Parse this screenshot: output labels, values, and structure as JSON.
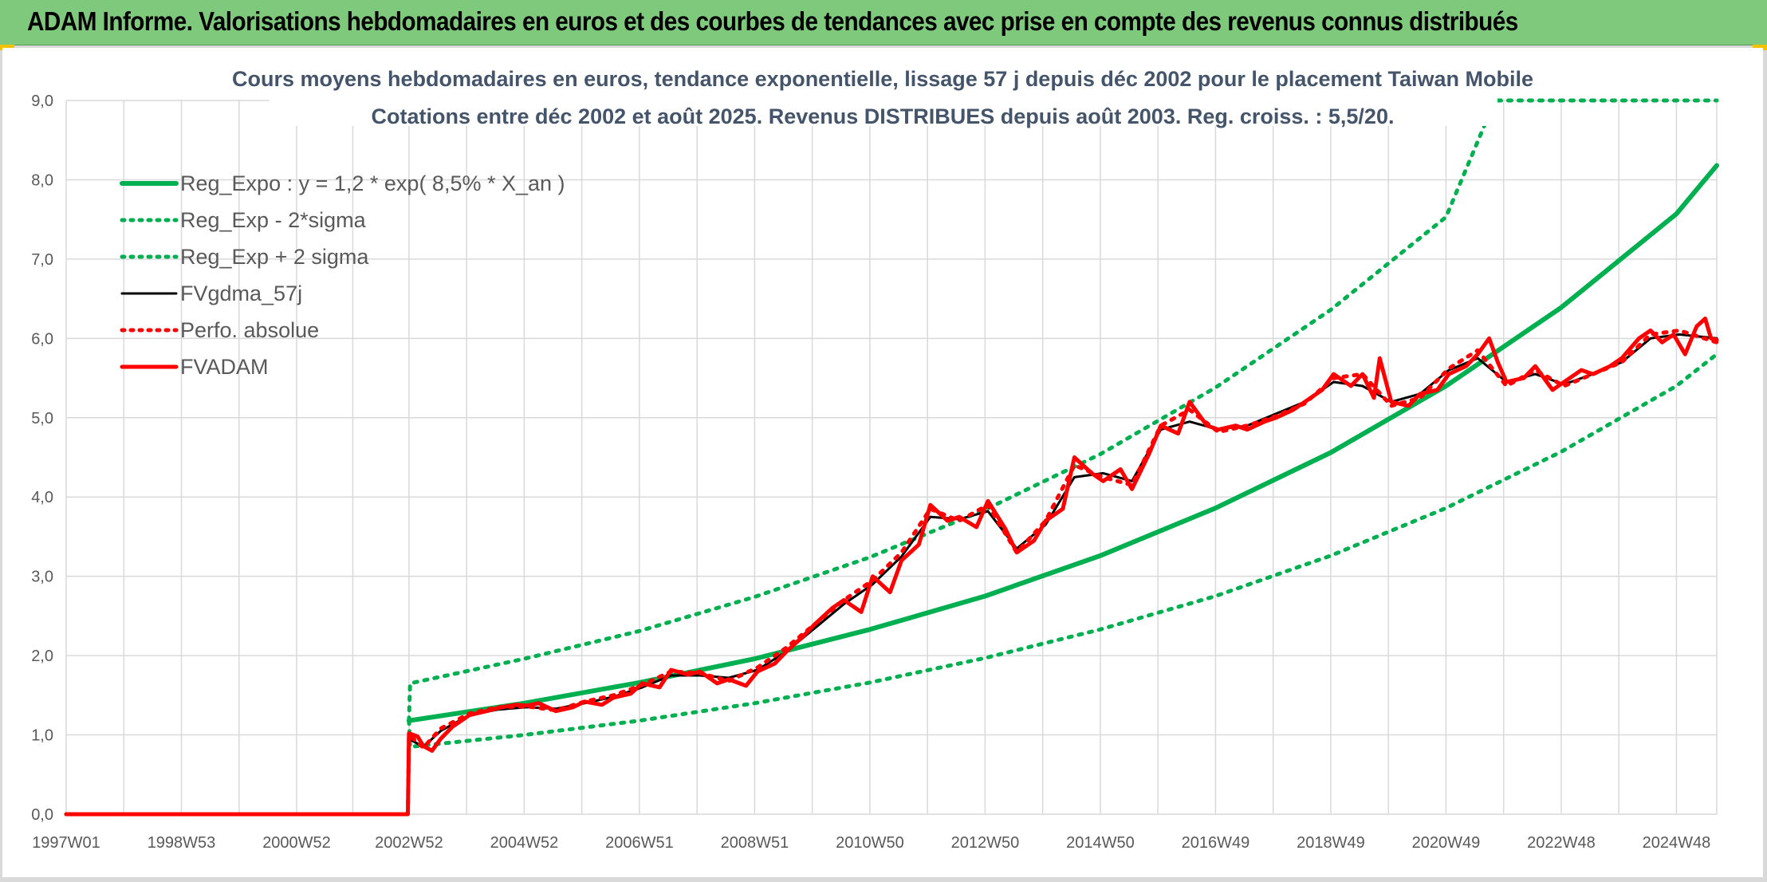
{
  "header": {
    "title": "ADAM Informe. Valorisations hebdomadaires en euros et des courbes de tendances avec prise en compte des revenus connus distribués"
  },
  "colors": {
    "header_bg": "#7ec97c",
    "green": "#00b050",
    "red": "#ff0000",
    "black": "#000000",
    "grid": "#d9d9d9",
    "title": "#44546a"
  },
  "chart_data": {
    "type": "line",
    "title": "Cours moyens hebdomadaires en euros, tendance exponentielle, lissage 57 j depuis déc 2002 pour le placement Taiwan Mobile",
    "subtitle": "Cotations entre déc 2002 et août 2025. Revenus DISTRIBUES depuis août 2003. Reg. croiss. : 5,5/20.",
    "xlabel": "",
    "ylabel": "",
    "ylim": [
      0,
      9
    ],
    "xlim": [
      1997.0,
      2025.65
    ],
    "y_ticks": [
      "0,0",
      "1,0",
      "2,0",
      "3,0",
      "4,0",
      "5,0",
      "6,0",
      "7,0",
      "8,0",
      "9,0"
    ],
    "x_ticks": [
      {
        "label": "1997W01",
        "x": 1997.0
      },
      {
        "label": "1998W53",
        "x": 1999.0
      },
      {
        "label": "2000W52",
        "x": 2001.0
      },
      {
        "label": "2002W52",
        "x": 2002.95
      },
      {
        "label": "2004W52",
        "x": 2004.95
      },
      {
        "label": "2006W51",
        "x": 2006.95
      },
      {
        "label": "2008W51",
        "x": 2008.95
      },
      {
        "label": "2010W50",
        "x": 2010.95
      },
      {
        "label": "2012W50",
        "x": 2012.95
      },
      {
        "label": "2014W50",
        "x": 2014.95
      },
      {
        "label": "2016W49",
        "x": 2016.95
      },
      {
        "label": "2018W49",
        "x": 2018.95
      },
      {
        "label": "2020W49",
        "x": 2020.95
      },
      {
        "label": "2022W48",
        "x": 2022.95
      },
      {
        "label": "2024W48",
        "x": 2024.95
      }
    ],
    "grid": true,
    "legend_position": "top-left",
    "series": [
      {
        "name": "Reg_Expo : y = 1,2 * exp( 8,5% *  X_an )",
        "color": "#00b050",
        "style": "solid-thick",
        "x": [
          2002.95,
          2004.95,
          2006.95,
          2008.95,
          2010.95,
          2012.95,
          2014.95,
          2016.95,
          2018.95,
          2020.95,
          2022.95,
          2024.95,
          2025.65
        ],
        "y": [
          1.18,
          1.4,
          1.66,
          1.96,
          2.33,
          2.75,
          3.26,
          3.86,
          4.56,
          5.4,
          6.39,
          7.57,
          8.18
        ]
      },
      {
        "name": "Reg_Exp - 2*sigma",
        "color": "#00b050",
        "style": "dotted",
        "x": [
          2002.95,
          2002.97,
          2004.95,
          2006.95,
          2008.95,
          2010.95,
          2012.95,
          2014.95,
          2016.95,
          2018.95,
          2020.95,
          2022.95,
          2024.95,
          2025.65
        ],
        "y": [
          1.18,
          0.85,
          1.0,
          1.18,
          1.4,
          1.66,
          1.97,
          2.33,
          2.75,
          3.26,
          3.86,
          4.57,
          5.4,
          5.8
        ]
      },
      {
        "name": "Reg_Exp + 2 sigma",
        "color": "#00b050",
        "style": "dotted",
        "x": [
          2002.95,
          2002.97,
          2004.95,
          2006.95,
          2008.95,
          2010.95,
          2012.95,
          2014.95,
          2016.95,
          2018.95,
          2020.95,
          2021.8,
          2022.95,
          2024.95,
          2025.65
        ],
        "y": [
          1.18,
          1.65,
          1.96,
          2.31,
          2.74,
          3.24,
          3.84,
          4.54,
          5.38,
          6.36,
          7.53,
          9.0,
          9.0,
          9.0,
          9.0
        ]
      },
      {
        "name": "FVgdma_57j",
        "color": "#000000",
        "style": "solid",
        "x": [
          1997.0,
          2002.93,
          2002.95,
          2003.2,
          2003.5,
          2004.0,
          2004.5,
          2005.0,
          2005.5,
          2006.0,
          2006.5,
          2007.0,
          2007.5,
          2008.0,
          2008.5,
          2009.0,
          2009.5,
          2010.0,
          2010.5,
          2011.0,
          2011.5,
          2012.0,
          2012.5,
          2013.0,
          2013.5,
          2014.0,
          2014.5,
          2015.0,
          2015.5,
          2016.0,
          2016.5,
          2017.0,
          2017.5,
          2018.0,
          2018.5,
          2019.0,
          2019.5,
          2020.0,
          2020.5,
          2021.0,
          2021.5,
          2022.0,
          2022.5,
          2023.0,
          2023.5,
          2024.0,
          2024.5,
          2025.0,
          2025.65
        ],
        "y": [
          0.0,
          0.0,
          0.95,
          0.85,
          1.05,
          1.25,
          1.32,
          1.35,
          1.33,
          1.4,
          1.48,
          1.6,
          1.75,
          1.75,
          1.72,
          1.82,
          2.05,
          2.35,
          2.65,
          2.9,
          3.25,
          3.75,
          3.72,
          3.82,
          3.35,
          3.65,
          4.25,
          4.3,
          4.2,
          4.85,
          4.95,
          4.85,
          4.9,
          5.05,
          5.2,
          5.45,
          5.4,
          5.2,
          5.3,
          5.6,
          5.75,
          5.45,
          5.55,
          5.42,
          5.55,
          5.7,
          6.0,
          6.05,
          6.0
        ]
      },
      {
        "name": "Perfo. absolue",
        "color": "#ff0000",
        "style": "dotted",
        "x": [
          1997.0,
          2002.93,
          2002.95,
          2003.2,
          2003.5,
          2004.0,
          2004.5,
          2005.0,
          2005.5,
          2006.0,
          2006.5,
          2007.0,
          2007.5,
          2008.0,
          2008.5,
          2009.0,
          2009.5,
          2010.0,
          2010.5,
          2011.0,
          2011.5,
          2012.0,
          2012.5,
          2013.0,
          2013.5,
          2014.0,
          2014.5,
          2015.0,
          2015.5,
          2016.0,
          2016.5,
          2017.0,
          2017.5,
          2018.0,
          2018.5,
          2019.0,
          2019.5,
          2020.0,
          2020.5,
          2021.0,
          2021.5,
          2022.0,
          2022.5,
          2023.0,
          2023.5,
          2024.0,
          2024.5,
          2025.0,
          2025.65
        ],
        "y": [
          0.0,
          0.0,
          1.0,
          0.84,
          1.08,
          1.27,
          1.35,
          1.36,
          1.31,
          1.42,
          1.5,
          1.63,
          1.8,
          1.78,
          1.68,
          1.85,
          2.1,
          2.4,
          2.7,
          2.95,
          3.3,
          3.85,
          3.7,
          3.9,
          3.3,
          3.7,
          4.4,
          4.25,
          4.15,
          4.9,
          5.1,
          4.82,
          4.9,
          5.02,
          5.18,
          5.5,
          5.55,
          5.15,
          5.25,
          5.62,
          5.85,
          5.4,
          5.6,
          5.4,
          5.55,
          5.7,
          6.05,
          6.1,
          5.95
        ]
      },
      {
        "name": "FVADAM",
        "color": "#ff0000",
        "style": "solid-thick",
        "x": [
          1997.0,
          2002.93,
          2002.95,
          2003.1,
          2003.2,
          2003.35,
          2003.5,
          2003.7,
          2004.0,
          2004.3,
          2004.5,
          2004.8,
          2005.0,
          2005.2,
          2005.5,
          2005.8,
          2006.0,
          2006.3,
          2006.5,
          2006.8,
          2007.0,
          2007.3,
          2007.5,
          2007.8,
          2008.0,
          2008.3,
          2008.5,
          2008.8,
          2009.0,
          2009.3,
          2009.5,
          2009.8,
          2010.0,
          2010.3,
          2010.5,
          2010.8,
          2011.0,
          2011.3,
          2011.5,
          2011.8,
          2012.0,
          2012.3,
          2012.5,
          2012.8,
          2013.0,
          2013.3,
          2013.5,
          2013.8,
          2014.0,
          2014.3,
          2014.5,
          2014.8,
          2015.0,
          2015.3,
          2015.5,
          2015.8,
          2016.0,
          2016.3,
          2016.5,
          2016.8,
          2017.0,
          2017.3,
          2017.5,
          2017.8,
          2018.0,
          2018.3,
          2018.5,
          2018.8,
          2019.0,
          2019.3,
          2019.5,
          2019.7,
          2019.8,
          2020.0,
          2020.3,
          2020.5,
          2020.8,
          2021.0,
          2021.3,
          2021.5,
          2021.7,
          2021.85,
          2022.0,
          2022.3,
          2022.5,
          2022.8,
          2023.0,
          2023.3,
          2023.5,
          2023.8,
          2024.0,
          2024.3,
          2024.5,
          2024.7,
          2024.9,
          2025.1,
          2025.3,
          2025.45,
          2025.55,
          2025.65
        ],
        "y": [
          0.0,
          0.0,
          1.02,
          0.98,
          0.86,
          0.8,
          0.95,
          1.1,
          1.25,
          1.3,
          1.34,
          1.38,
          1.37,
          1.4,
          1.3,
          1.35,
          1.42,
          1.38,
          1.47,
          1.52,
          1.65,
          1.6,
          1.82,
          1.76,
          1.8,
          1.65,
          1.7,
          1.62,
          1.8,
          1.9,
          2.05,
          2.25,
          2.4,
          2.6,
          2.7,
          2.55,
          3.0,
          2.8,
          3.2,
          3.4,
          3.9,
          3.7,
          3.75,
          3.62,
          3.95,
          3.6,
          3.3,
          3.45,
          3.7,
          3.85,
          4.5,
          4.3,
          4.2,
          4.35,
          4.1,
          4.55,
          4.9,
          4.8,
          5.2,
          4.9,
          4.85,
          4.9,
          4.85,
          4.95,
          5.0,
          5.1,
          5.2,
          5.35,
          5.55,
          5.4,
          5.55,
          5.25,
          5.75,
          5.2,
          5.15,
          5.3,
          5.35,
          5.55,
          5.65,
          5.8,
          6.0,
          5.7,
          5.45,
          5.5,
          5.65,
          5.35,
          5.45,
          5.6,
          5.55,
          5.65,
          5.75,
          6.0,
          6.1,
          5.95,
          6.05,
          5.8,
          6.15,
          6.25,
          6.0,
          5.98
        ]
      }
    ]
  }
}
